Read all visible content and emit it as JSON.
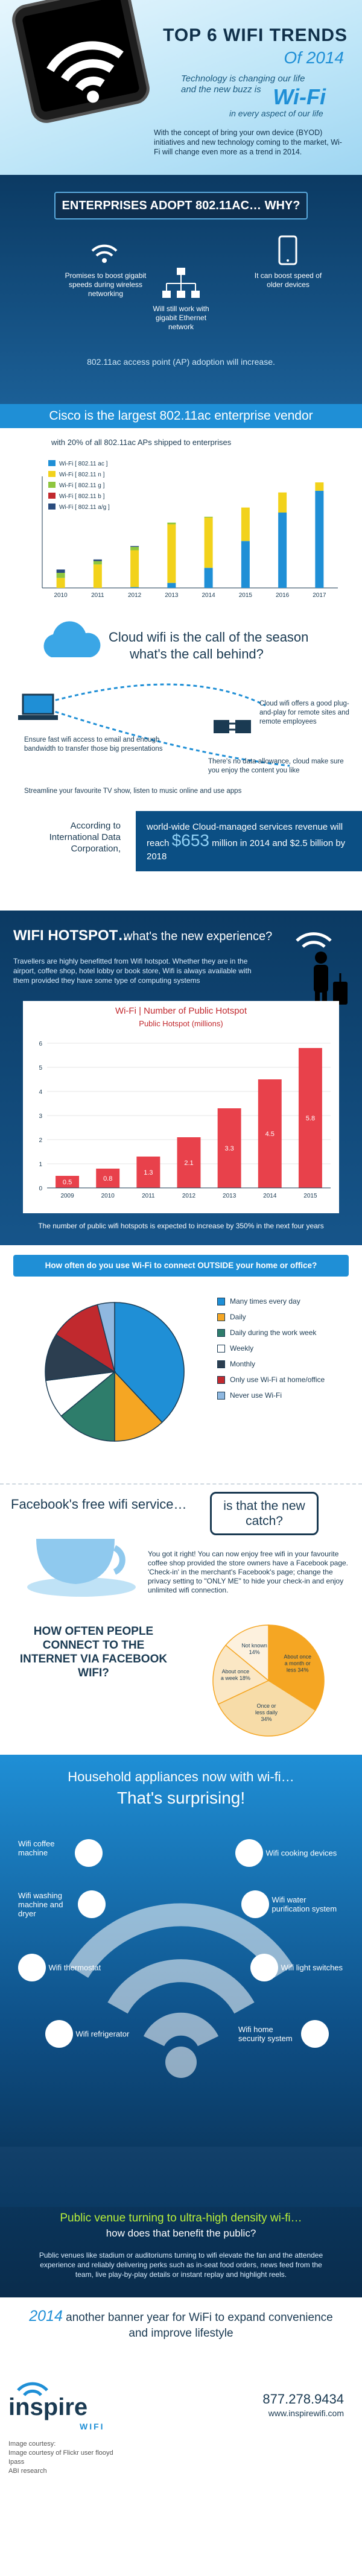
{
  "hero": {
    "title": "TOP 6 WIFI TRENDS",
    "year": "Of 2014",
    "tagline_1": "Technology is changing our life",
    "tagline_2": "and the new buzz is",
    "wifi_word": "Wi-Fi",
    "tagline_3": "in every aspect of our life",
    "intro": "With the concept of bring your own device (BYOD) initiatives and new technology coming to the market, Wi-Fi will change even more as a trend in 2014."
  },
  "enterprise": {
    "banner": "ENTERPRISES ADOPT 802.11AC… WHY?",
    "reason_1": "Promises to boost gigabit speeds during wireless networking",
    "reason_2": "Will still work with gigabit Ethernet network",
    "reason_3": "It can boost speed of older devices",
    "adoption": "802.11ac access point (AP) adoption will increase."
  },
  "cisco": {
    "banner": "Cisco is the largest 802.11ac enterprise vendor",
    "subtitle": "with 20% of all 802.11ac APs shipped to enterprises"
  },
  "chart_data": [
    {
      "type": "bar",
      "categories": [
        "2010",
        "2011",
        "2012",
        "2013",
        "2014",
        "2015",
        "2016",
        "2017"
      ],
      "series": [
        {
          "name": "Wi-Fi [ 802.11 ac ]",
          "color": "#1f8fd6",
          "values": [
            0,
            0,
            0.5,
            3,
            12,
            28,
            45,
            58
          ]
        },
        {
          "name": "Wi-Fi [ 802.11 n ]",
          "color": "#f2d21b",
          "values": [
            6,
            14,
            22,
            35,
            30,
            20,
            12,
            5
          ]
        },
        {
          "name": "Wi-Fi [ 802.11 g ]",
          "color": "#8fc63f",
          "values": [
            3,
            2,
            2,
            1,
            0.5,
            0,
            0,
            0
          ]
        },
        {
          "name": "Wi-Fi [ 802.11 b ]",
          "color": "#c1292e",
          "values": [
            0,
            0,
            0,
            0,
            0,
            0,
            0,
            0
          ]
        },
        {
          "name": "Wi-Fi [ 802.11 a/g ]",
          "color": "#2b4c7e",
          "values": [
            2,
            1,
            0.5,
            0,
            0,
            0,
            0,
            0
          ]
        }
      ],
      "legend": "top-left"
    },
    {
      "type": "bar",
      "title": "Wi-Fi | Number of Public Hotspot",
      "ylabel": "Public Hotspot (millions)",
      "categories": [
        "2009",
        "2010",
        "2011",
        "2012",
        "2013",
        "2014",
        "2015"
      ],
      "values": [
        0.5,
        0.8,
        1.3,
        2.1,
        3.3,
        4.5,
        5.8
      ],
      "ylim": [
        0,
        6
      ]
    },
    {
      "type": "pie",
      "title": "How often do you use Wi-Fi to connect OUTSIDE your home or office?",
      "categories": [
        "Many times every day",
        "Daily",
        "Daily during the work week",
        "Weekly",
        "Monthly",
        "Only use Wi-Fi at home/office",
        "Never use Wi-Fi"
      ],
      "colors": [
        "#1f8fd6",
        "#f5a623",
        "#2e7d6b",
        "#ffffff",
        "#2c3e50",
        "#c1292e",
        "#8fb8e0"
      ],
      "values": [
        38,
        12,
        14,
        9,
        11,
        12,
        4
      ]
    },
    {
      "type": "pie",
      "title": "HOW OFTEN PEOPLE CONNECT TO THE INTERNET VIA FACEBOOK WIFI?",
      "categories": [
        "About once a month or less",
        "Once or less daily",
        "About once a week",
        "Not known"
      ],
      "colors": [
        "#f5a623",
        "#f7dca8",
        "#fbe7c4",
        "#fdf1de"
      ],
      "values": [
        34,
        34,
        18,
        14
      ],
      "labels": [
        "About once a month or less 34%",
        "Once or less daily 34%",
        "About once a week 18%",
        "Not known 14%"
      ]
    }
  ],
  "cloud": {
    "title_1": "Cloud wifi is the call of the season",
    "title_2": "what's the call behind?",
    "point_1": "Cloud wifi offers a good plug-and-play for remote sites and remote employees",
    "point_2": "Ensure fast wifi access to email and enough bandwidth to transfer those big presentations",
    "point_3": "There's no data allowance, cloud make sure you enjoy the content you like",
    "point_4": "Streamline your favourite TV show, listen to music online and use apps",
    "idc": "According to International Data Corporation,",
    "revenue_1": "world-wide Cloud-managed services revenue will reach",
    "revenue_amount": "$653",
    "revenue_2": "million in 2014 and",
    "revenue_3": "$2.5 billion by 2018"
  },
  "hotspot": {
    "title": "WIFI HOTSPOT…",
    "subtitle": "what's the new experience?",
    "body": "Travellers are highly benefitted from Wifi hotspot. Whether they are in the airport, coffee shop, hotel lobby or book store, Wifi is always available with them provided they have some type of computing systems",
    "footnote": "The number of public wifi hotspots is expected to increase by 350% in the next four years"
  },
  "facebook": {
    "title_left": "Facebook's free wifi service…",
    "title_right": "is that the new catch?",
    "body": "You got it right! You can now enjoy free wifi in your favourite coffee shop provided the store owners have a Facebook page. 'Check-in' in the merchant's Facebook's page; change the privacy setting to \"ONLY ME\" to hide your check-in and enjoy unlimited wifi connection."
  },
  "household": {
    "title_1": "Household appliances now with wi-fi…",
    "title_2": "That's surprising!",
    "items": [
      "Wifi coffee machine",
      "Wifi cooking devices",
      "Wifi washing machine and dryer",
      "Wifi water purification system",
      "Wifi thermostat",
      "Wifi light switches",
      "Wifi refrigerator",
      "Wifi home security system"
    ]
  },
  "public": {
    "title_1": "Public venue turning to ultra-high density wi-fi…",
    "title_2": "how does that benefit the public?",
    "body": "Public venues like stadium or auditoriums turning to wifi elevate the fan and the attendee experience and reliably delivering perks such as in-seat food orders, news feed from the team, live play-by-play details or instant replay and highlight reels."
  },
  "closing": {
    "year": "2014",
    "text": "another banner year for WiFi to expand convenience and improve lifestyle"
  },
  "footer": {
    "logo_main": "inspire",
    "logo_sub": "WIFI",
    "phone": "877.278.9434",
    "url": "www.inspirewifi.com",
    "credits": [
      "Image courtesy:",
      "Image courtesy of Flickr user flooyd",
      "Ipass",
      "ABI research"
    ]
  }
}
